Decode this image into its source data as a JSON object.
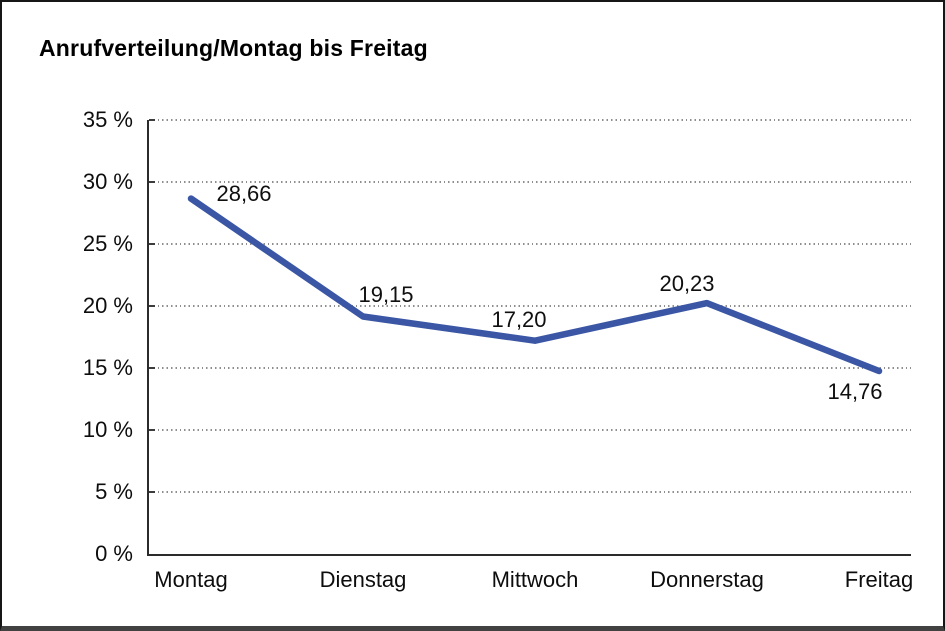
{
  "page": {
    "title": "Anrufverteilung/Montag bis Freitag"
  },
  "chart_data": {
    "type": "line",
    "title": "Anrufverteilung/Montag bis Freitag",
    "categories": [
      "Montag",
      "Dienstag",
      "Mittwoch",
      "Donnerstag",
      "Freitag"
    ],
    "series": [
      {
        "name": "Anrufverteilung",
        "values": [
          28.66,
          19.15,
          17.2,
          20.23,
          14.76
        ]
      }
    ],
    "values": [
      28.66,
      19.15,
      17.2,
      20.23,
      14.76
    ],
    "value_labels": [
      "28,66",
      "19,15",
      "17,20",
      "20,23",
      "14,76"
    ],
    "xlabel": "",
    "ylabel": "",
    "ylim": [
      0,
      35
    ],
    "y_tick_labels": [
      "35 %",
      "30 %",
      "25 %",
      "20 %",
      "15 %",
      "10 %",
      "5 %",
      "0 %"
    ],
    "y_tick_values": [
      35,
      30,
      25,
      20,
      15,
      10,
      5,
      0
    ],
    "grid": "horizontal-dotted",
    "legend_position": "none",
    "line_color": "#3A56A4",
    "axis_color": "#2b2b2b",
    "gridline_color": "#8e8e8e",
    "text_color": "#0d0d0d",
    "background_color": "#ffffff"
  }
}
